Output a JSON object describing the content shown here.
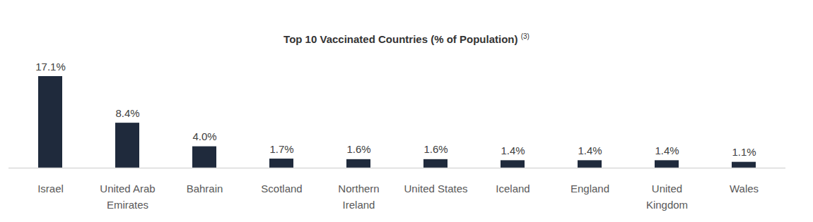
{
  "chart_data": {
    "type": "bar",
    "title": "Top 10 Vaccinated Countries (% of Population)",
    "annotations": [
      "(3)"
    ],
    "categories": [
      "Israel",
      "United Arab Emirates",
      "Bahrain",
      "Scotland",
      "Northern Ireland",
      "United States",
      "Iceland",
      "England",
      "United Kingdom",
      "Wales"
    ],
    "values": [
      17.1,
      8.4,
      4.0,
      1.7,
      1.6,
      1.6,
      1.4,
      1.4,
      1.4,
      1.1
    ],
    "value_labels": [
      "17.1%",
      "8.4%",
      "4.0%",
      "1.7%",
      "1.6%",
      "1.6%",
      "1.4%",
      "1.4%",
      "1.4%",
      "1.1%"
    ],
    "data_labels": true,
    "color": "#1f2a3c",
    "ylim": [
      0,
      17.1
    ],
    "yticks": [],
    "tick_labels": "x",
    "grid": false
  }
}
